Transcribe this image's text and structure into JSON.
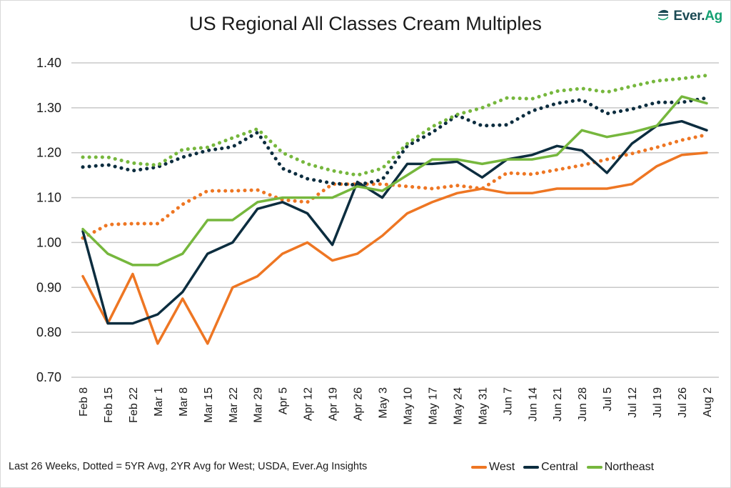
{
  "logo": {
    "prefix": "Ever.",
    "suffix": "Ag",
    "icon": "ever-ag-leaf-icon"
  },
  "footer_note": "Last 26 Weeks, Dotted = 5YR Avg, 2YR Avg for West; USDA, Ever.Ag Insights",
  "chart_data": {
    "type": "line",
    "title": "US Regional All Classes Cream Multiples",
    "xlabel": "",
    "ylabel": "",
    "ylim": [
      0.7,
      1.4
    ],
    "yticks": [
      "0.70",
      "0.80",
      "0.90",
      "1.00",
      "1.10",
      "1.20",
      "1.30",
      "1.40"
    ],
    "ytick_values": [
      0.7,
      0.8,
      0.9,
      1.0,
      1.1,
      1.2,
      1.3,
      1.4
    ],
    "grid": true,
    "legend_position": "bottom-right",
    "categories": [
      "Feb 8",
      "Feb 15",
      "Feb 22",
      "Mar 1",
      "Mar 8",
      "Mar 15",
      "Mar 22",
      "Mar 29",
      "Apr 5",
      "Apr 12",
      "Apr 19",
      "Apr 26",
      "May 3",
      "May 10",
      "May 17",
      "May 24",
      "May 31",
      "Jun 7",
      "Jun 14",
      "Jun 21",
      "Jun 28",
      "Jul 5",
      "Jul 12",
      "Jul 19",
      "Jul 26",
      "Aug 2"
    ],
    "series": [
      {
        "name": "West",
        "style": "solid",
        "color": "#ee7623",
        "in_legend": true,
        "values": [
          0.925,
          0.82,
          0.93,
          0.775,
          0.875,
          0.775,
          0.9,
          0.925,
          0.975,
          1.0,
          0.96,
          0.975,
          1.015,
          1.065,
          1.09,
          1.11,
          1.12,
          1.11,
          1.11,
          1.12,
          1.12,
          1.12,
          1.13,
          1.17,
          1.195,
          1.2
        ]
      },
      {
        "name": "Central",
        "style": "solid",
        "color": "#0c2d3f",
        "in_legend": true,
        "values": [
          1.025,
          0.82,
          0.82,
          0.84,
          0.89,
          0.975,
          1.0,
          1.075,
          1.09,
          1.065,
          0.995,
          1.135,
          1.1,
          1.175,
          1.175,
          1.18,
          1.145,
          1.185,
          1.195,
          1.215,
          1.205,
          1.155,
          1.22,
          1.26,
          1.27,
          1.25
        ]
      },
      {
        "name": "Northeast",
        "style": "solid",
        "color": "#76b73d",
        "in_legend": true,
        "values": [
          1.03,
          0.975,
          0.95,
          0.95,
          0.975,
          1.05,
          1.05,
          1.09,
          1.1,
          1.1,
          1.1,
          1.125,
          1.115,
          1.15,
          1.185,
          1.185,
          1.175,
          1.185,
          1.185,
          1.195,
          1.25,
          1.235,
          1.245,
          1.26,
          1.325,
          1.31
        ]
      },
      {
        "name": "West 2YR Avg",
        "style": "dotted",
        "color": "#ee7623",
        "in_legend": false,
        "values": [
          1.01,
          1.04,
          1.042,
          1.042,
          1.085,
          1.115,
          1.115,
          1.117,
          1.095,
          1.09,
          1.13,
          1.13,
          1.13,
          1.125,
          1.12,
          1.127,
          1.12,
          1.155,
          1.152,
          1.162,
          1.172,
          1.185,
          1.198,
          1.212,
          1.228,
          1.24
        ]
      },
      {
        "name": "Central 5YR Avg",
        "style": "dotted",
        "color": "#0c2d3f",
        "in_legend": false,
        "values": [
          1.168,
          1.173,
          1.16,
          1.168,
          1.19,
          1.205,
          1.213,
          1.245,
          1.165,
          1.142,
          1.132,
          1.128,
          1.14,
          1.215,
          1.245,
          1.283,
          1.26,
          1.262,
          1.293,
          1.31,
          1.318,
          1.287,
          1.297,
          1.312,
          1.312,
          1.322
        ]
      },
      {
        "name": "Northeast 5YR Avg",
        "style": "dotted",
        "color": "#76b73d",
        "in_legend": false,
        "values": [
          1.19,
          1.19,
          1.177,
          1.172,
          1.207,
          1.212,
          1.233,
          1.253,
          1.2,
          1.175,
          1.16,
          1.15,
          1.165,
          1.22,
          1.258,
          1.285,
          1.3,
          1.322,
          1.32,
          1.337,
          1.343,
          1.335,
          1.348,
          1.36,
          1.365,
          1.372
        ]
      }
    ]
  }
}
